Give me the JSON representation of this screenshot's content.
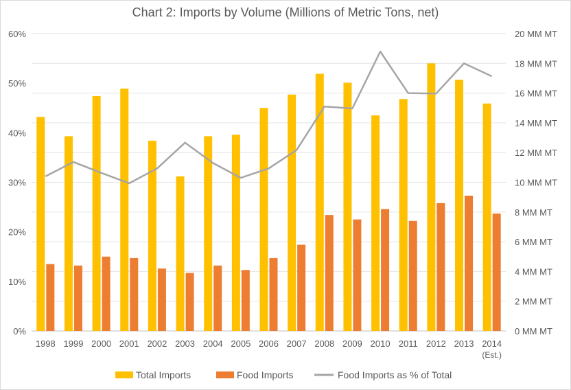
{
  "chart_data": {
    "type": "bar",
    "title": "Chart 2: Imports by Volume (Millions of Metric Tons, net)",
    "categories": [
      "1998",
      "1999",
      "2000",
      "2001",
      "2002",
      "2003",
      "2004",
      "2005",
      "2006",
      "2007",
      "2008",
      "2009",
      "2010",
      "2011",
      "2012",
      "2013",
      "2014"
    ],
    "category_sublabels": {
      "2014": "(Est.)"
    },
    "series": [
      {
        "name": "Total Imports",
        "type": "bar",
        "axis": "right",
        "color": "#FFC000",
        "values": [
          14.4,
          13.1,
          15.8,
          16.3,
          12.8,
          10.4,
          13.1,
          13.2,
          15.0,
          15.9,
          17.3,
          16.7,
          14.5,
          15.6,
          18.0,
          16.9,
          15.3
        ]
      },
      {
        "name": "Food Imports",
        "type": "bar",
        "axis": "right",
        "color": "#ED7D31",
        "values": [
          4.5,
          4.4,
          5.0,
          4.9,
          4.2,
          3.9,
          4.4,
          4.1,
          4.9,
          5.8,
          7.8,
          7.5,
          8.2,
          7.4,
          8.6,
          9.1,
          7.9
        ]
      },
      {
        "name": "Food Imports as % of Total",
        "type": "line",
        "axis": "left",
        "color": "#A5A5A5",
        "values": [
          31.2,
          34.1,
          31.9,
          29.8,
          32.8,
          38.0,
          33.9,
          30.9,
          32.8,
          36.5,
          45.3,
          44.9,
          56.4,
          48.0,
          47.9,
          54.0,
          51.4
        ]
      }
    ],
    "y_left": {
      "ylim": [
        0,
        60
      ],
      "ticks": [
        "0%",
        "10%",
        "20%",
        "30%",
        "40%",
        "50%",
        "60%"
      ]
    },
    "y_right": {
      "ylim": [
        0,
        20
      ],
      "ticks": [
        "0 MM MT",
        "2 MM MT",
        "4 MM MT",
        "6 MM MT",
        "8 MM MT",
        "10 MM MT",
        "12 MM MT",
        "14 MM MT",
        "16 MM MT",
        "18 MM MT",
        "20 MM MT"
      ]
    },
    "grid": true,
    "legend": "bottom",
    "legend_entries": [
      "Total Imports",
      "Food Imports",
      "Food Imports as % of Total"
    ]
  }
}
